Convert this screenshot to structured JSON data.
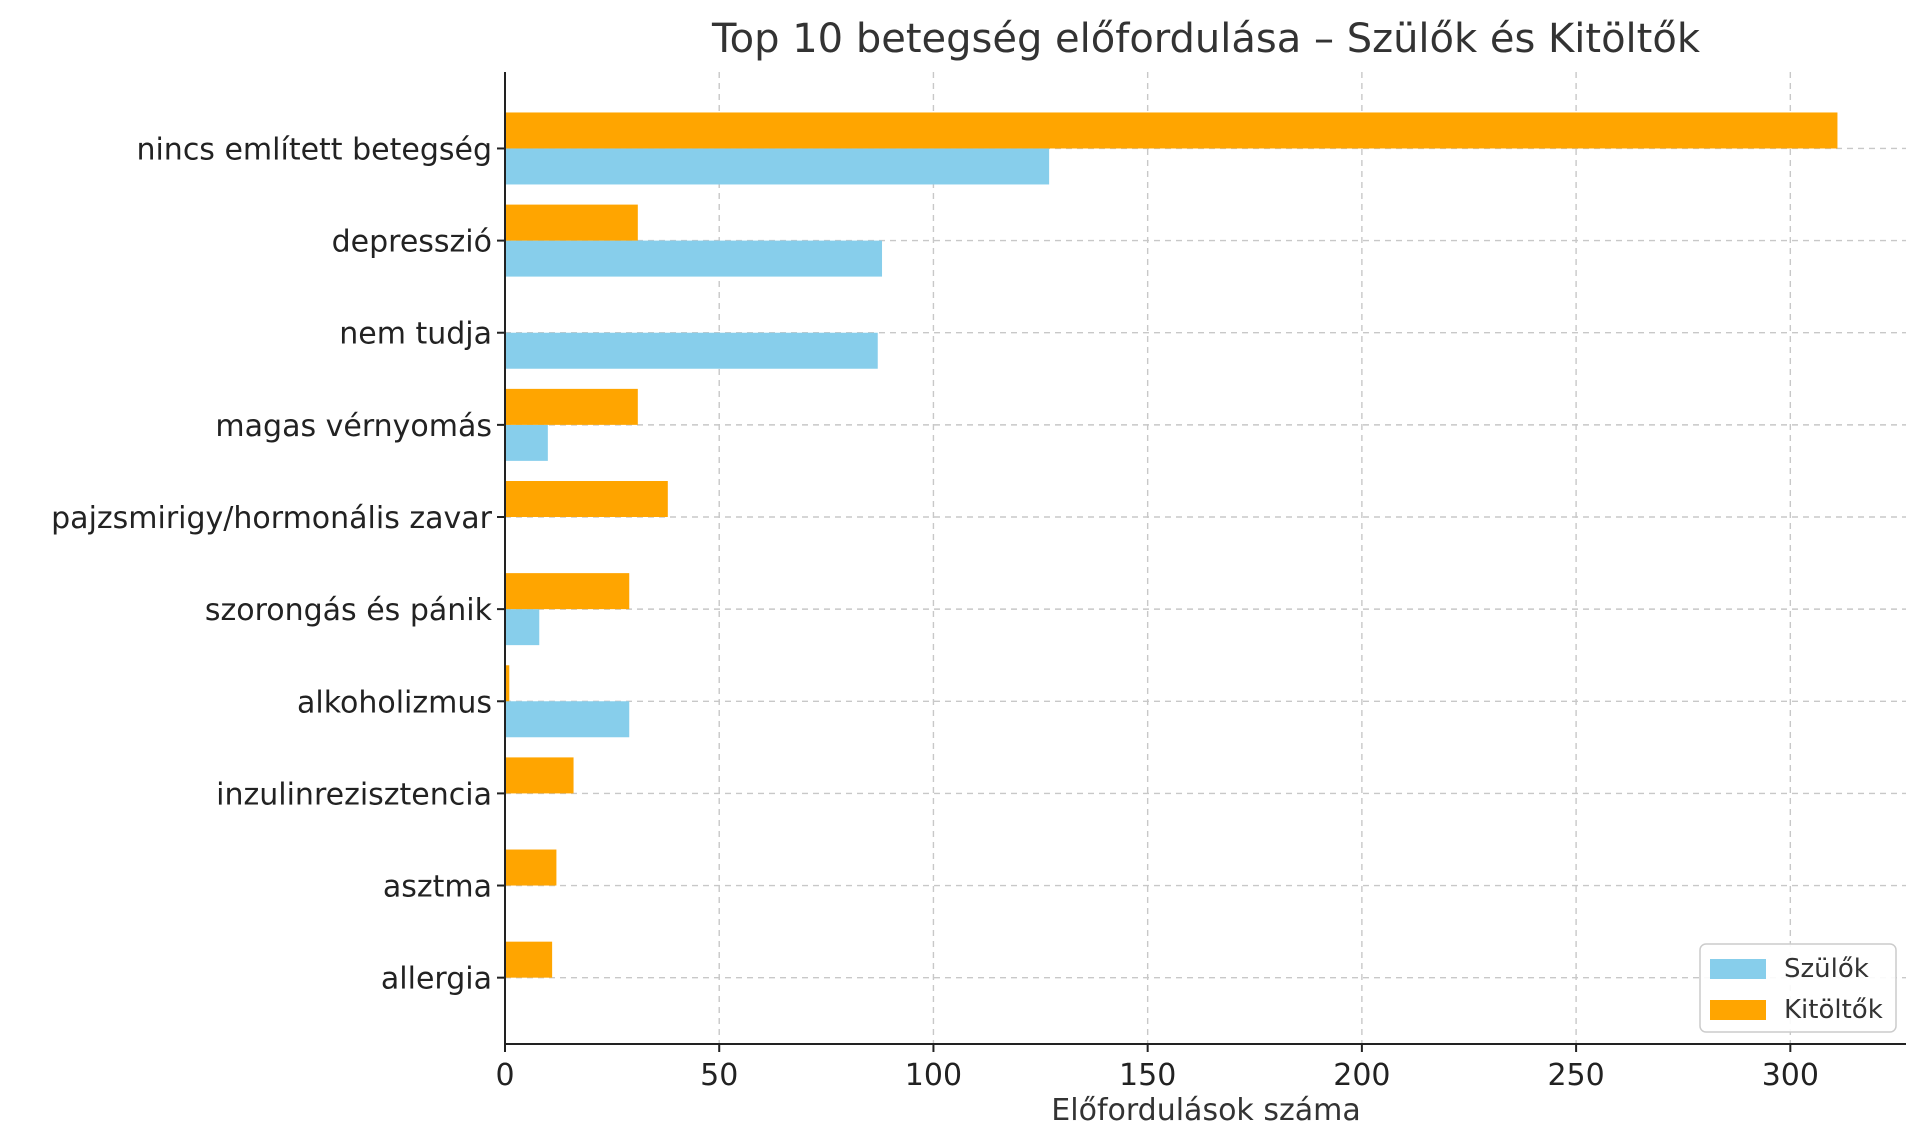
{
  "chart_data": {
    "type": "bar",
    "orientation": "horizontal",
    "title": "Top 10 betegség előfordulása – Szülők és Kitöltők",
    "xlabel": "Előfordulások száma",
    "ylabel": "",
    "xlim": [
      0,
      327
    ],
    "xticks": [
      0,
      50,
      100,
      150,
      200,
      250,
      300
    ],
    "grid": true,
    "legend_position": "bottom-right",
    "categories": [
      "nincs említett betegség",
      "depresszió",
      "nem tudja",
      "magas vérnyomás",
      "pajzsmirigy/hormonális zavar",
      "szorongás és pánik",
      "alkoholizmus",
      "inzulinrezisztencia",
      "asztma",
      "allergia"
    ],
    "series": [
      {
        "name": "Szülők",
        "color": "#87CEEB",
        "values": [
          127,
          88,
          87,
          10,
          0,
          8,
          29,
          0,
          0,
          0
        ]
      },
      {
        "name": "Kitöltők",
        "color": "#FFA500",
        "values": [
          311,
          31,
          0,
          31,
          38,
          29,
          1,
          16,
          12,
          11
        ]
      }
    ]
  }
}
